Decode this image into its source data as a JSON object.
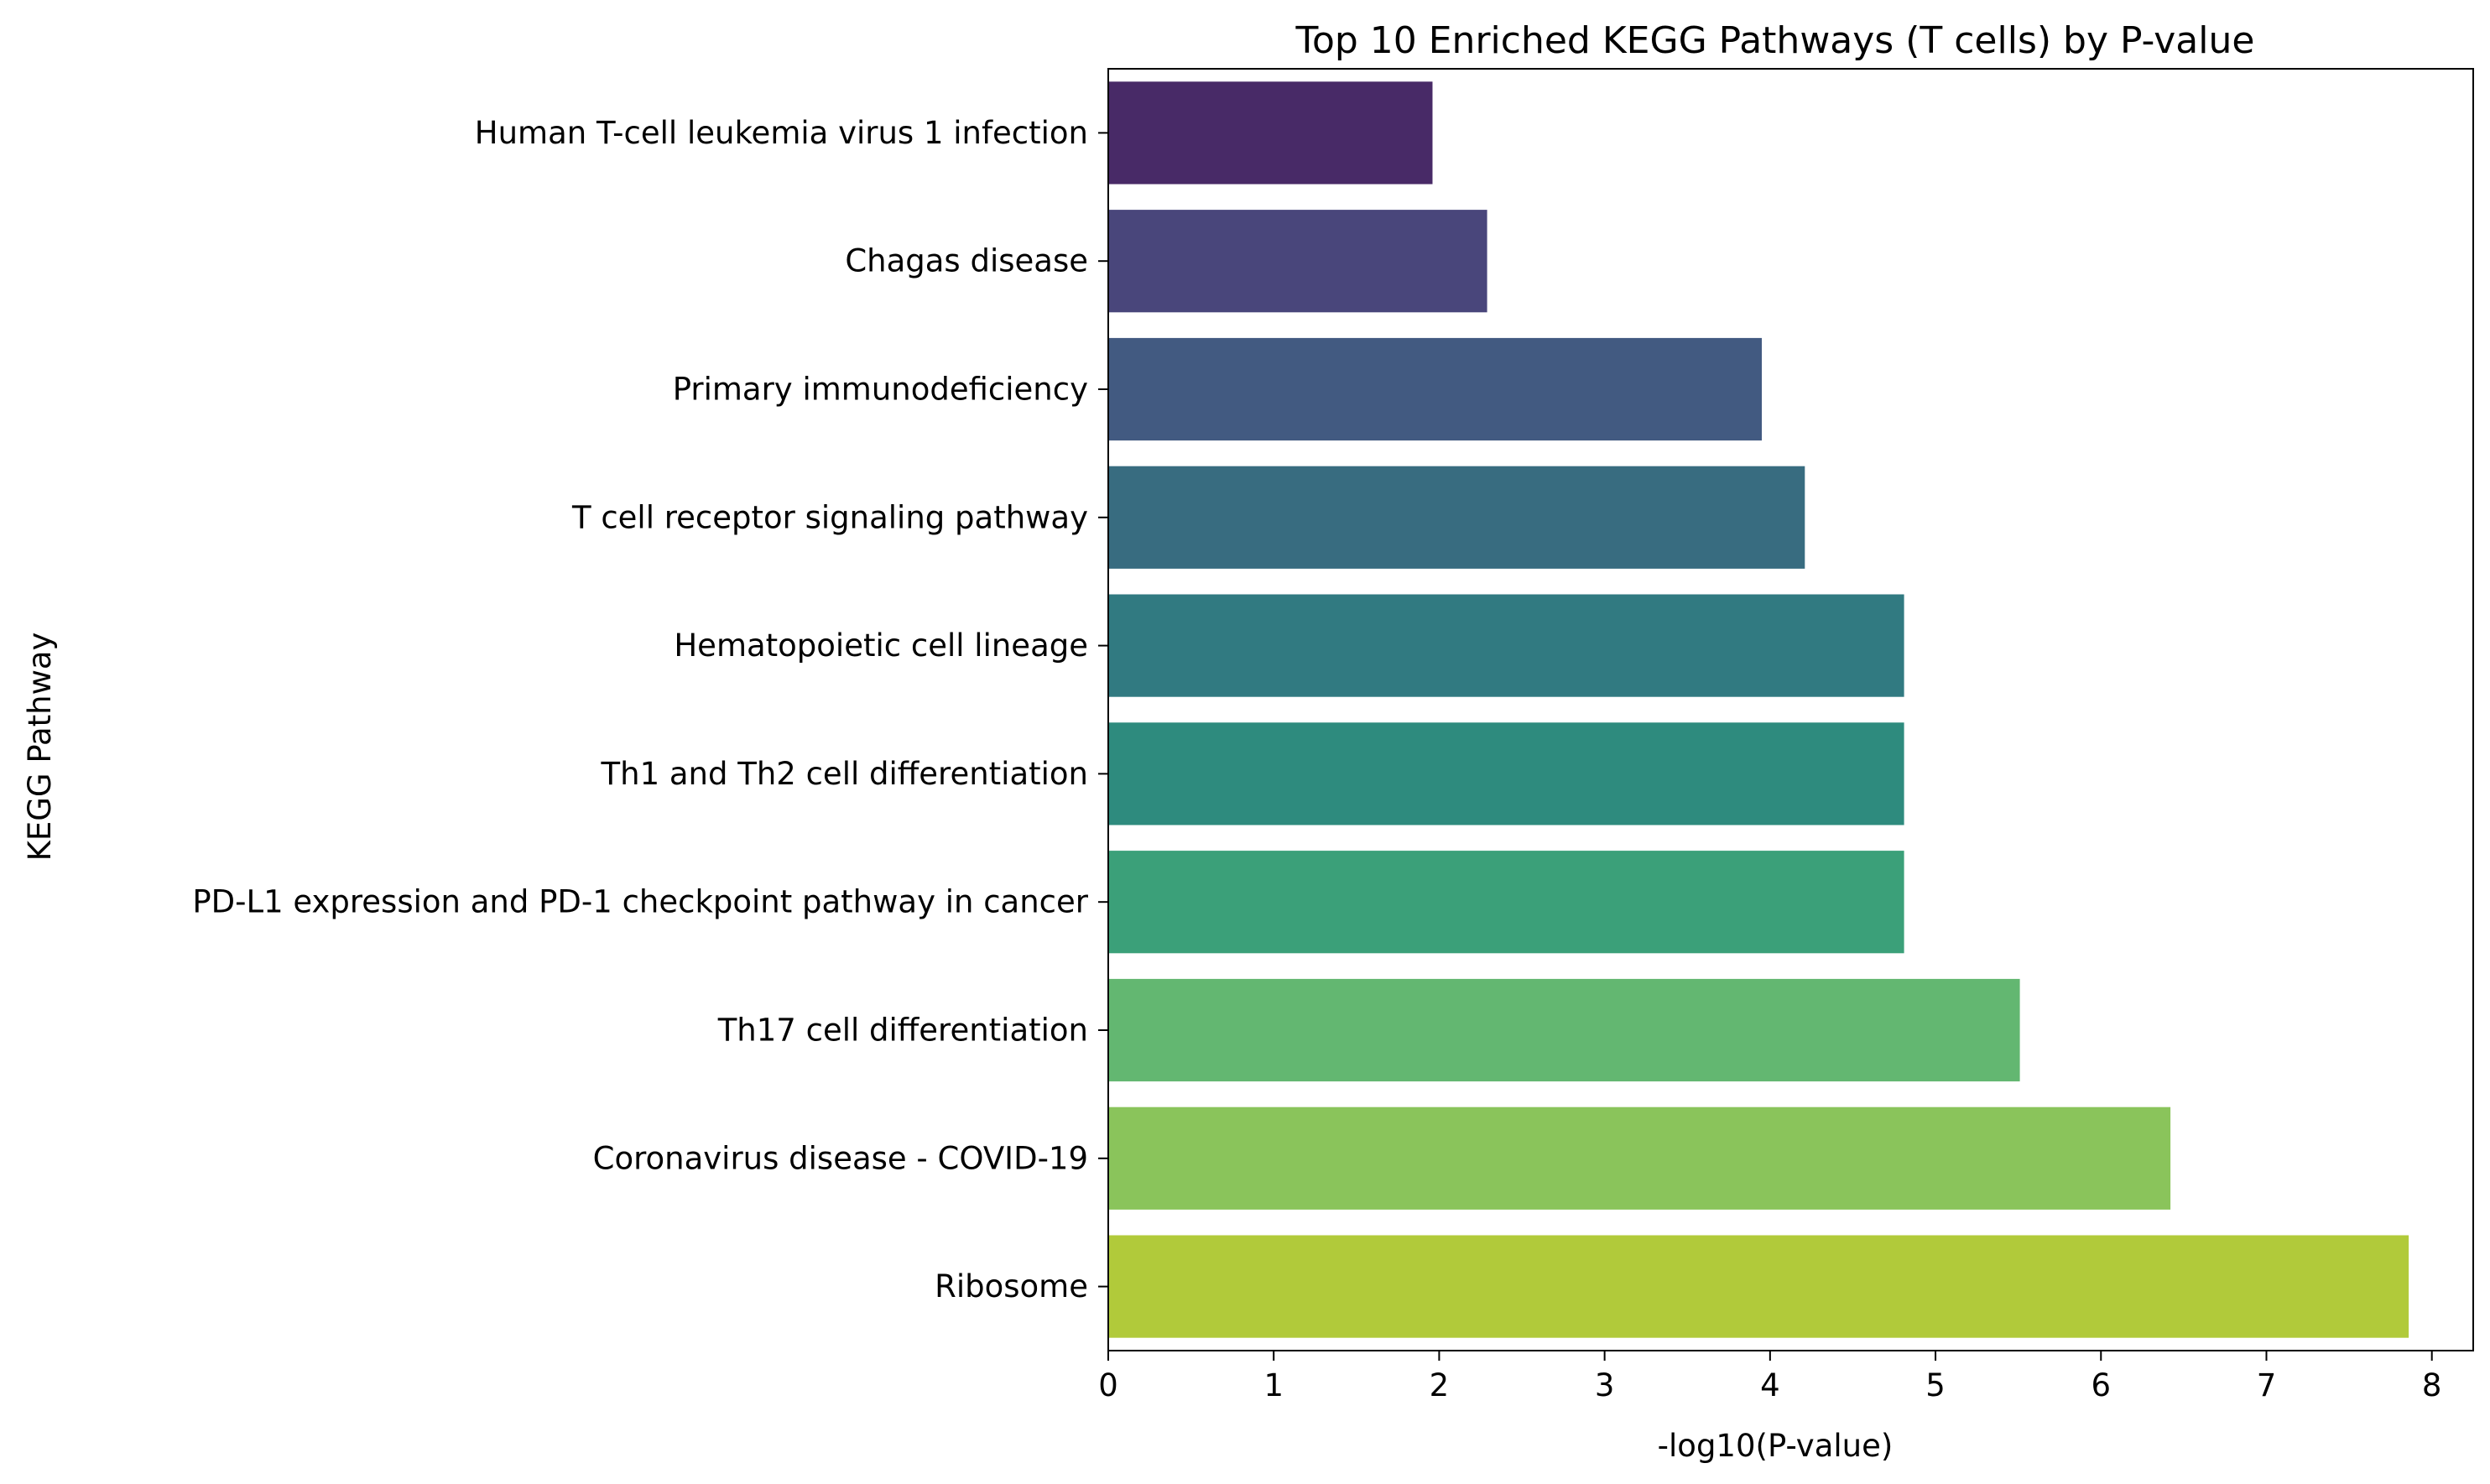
{
  "chart_data": {
    "type": "bar",
    "orientation": "horizontal",
    "title": "Top 10 Enriched KEGG Pathways (T cells) by P-value",
    "xlabel": "-log10(P-value)",
    "ylabel": "KEGG Pathway",
    "xlim": [
      0,
      8.25
    ],
    "xticks": [
      "0",
      "1",
      "2",
      "3",
      "4",
      "5",
      "6",
      "7",
      "8"
    ],
    "grid": false,
    "legend": "none",
    "categories": [
      "Human T-cell leukemia virus 1 infection",
      "Chagas disease",
      "Primary immunodeficiency",
      "T cell receptor signaling pathway",
      "Hematopoietic cell lineage",
      "Th1 and Th2 cell differentiation",
      "PD-L1 expression and PD-1 checkpoint pathway in cancer",
      "Th17 cell differentiation",
      "Coronavirus disease - COVID-19",
      "Ribosome"
    ],
    "values": [
      1.96,
      2.29,
      3.95,
      4.21,
      4.81,
      4.81,
      4.81,
      5.51,
      6.42,
      7.86
    ],
    "colors": [
      "#482a67",
      "#49467b",
      "#425a81",
      "#386c80",
      "#317a81",
      "#2e8b7e",
      "#3ba079",
      "#63b771",
      "#8ac45b",
      "#b1ca3a"
    ]
  }
}
